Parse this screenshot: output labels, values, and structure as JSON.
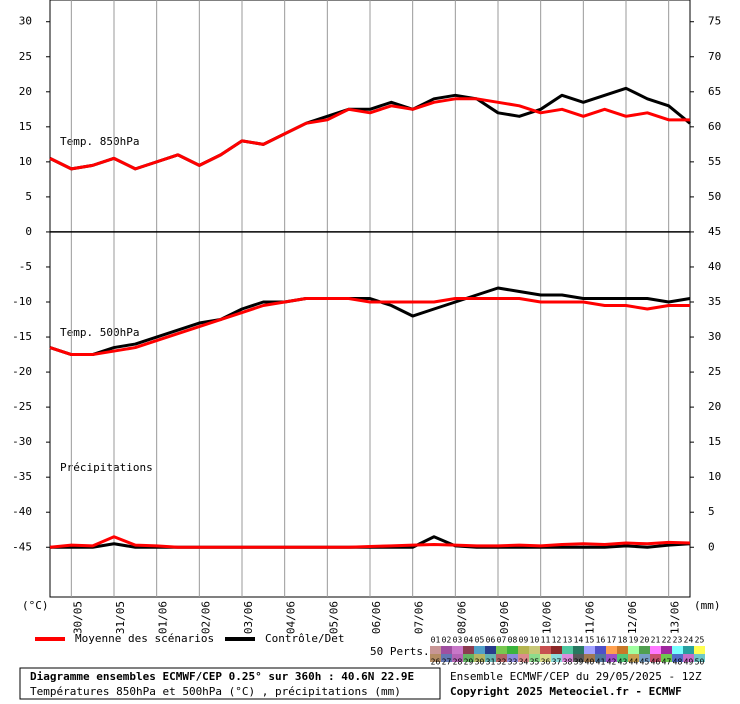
{
  "chart_data": {
    "type": "line",
    "title": "Diagramme ensembles ECMWF/CEP 0.25° sur 360h : 40.6N 22.9E",
    "subtitle": "Températures 850hPa et 500hPa (°C) , précipitations (mm)",
    "run_label": "Ensemble ECMWF/CEP du 29/05/2025 - 12Z",
    "copyright": "Copyright 2025 Meteociel.fr - ECMWF",
    "y_label": "(°C)",
    "y2_label": "(mm)",
    "t850_label": "Temp. 850hPa",
    "t500_label": "Temp. 500hPa",
    "precip_label": "Précipitations",
    "perts_label": "50 Perts.",
    "perts": [
      "01",
      "02",
      "03",
      "04",
      "05",
      "06",
      "07",
      "08",
      "09",
      "10",
      "11",
      "12",
      "13",
      "14",
      "15",
      "16",
      "17",
      "18",
      "19",
      "20",
      "21",
      "22",
      "23",
      "24",
      "25",
      "26",
      "27",
      "28",
      "29",
      "30",
      "31",
      "32",
      "33",
      "34",
      "35",
      "36",
      "37",
      "38",
      "39",
      "40",
      "41",
      "42",
      "43",
      "44",
      "45",
      "46",
      "47",
      "48",
      "49",
      "50"
    ],
    "perts_colors": [
      "#c89696",
      "#a050a0",
      "#c878c8",
      "#8c3c50",
      "#50a0c8",
      "#283c8c",
      "#78c850",
      "#3cb43c",
      "#b4b450",
      "#c8c878",
      "#c85050",
      "#8c2828",
      "#50c8a0",
      "#287860",
      "#a0a0ff",
      "#5050c8",
      "#ffa050",
      "#c87828",
      "#a0ffa0",
      "#50a050",
      "#ff78ff",
      "#a028a0",
      "#78ffff",
      "#28a0a0",
      "#ffff50",
      "#b48c64",
      "#6478b4",
      "#b464b4",
      "#64b464",
      "#b4b464",
      "#64b4b4",
      "#b46464",
      "#8c8cdc",
      "#dc8c8c",
      "#8cdc8c",
      "#dcdc8c",
      "#8cdcdc",
      "#dc8cdc",
      "#5a5a5a",
      "#a07850",
      "#5078a0",
      "#a050c8",
      "#50c878",
      "#c8a050",
      "#78a0c8",
      "#c8506e",
      "#6ec850",
      "#506ec8",
      "#c86ec8",
      "#6ec8c8"
    ],
    "x": [
      0,
      12,
      24,
      36,
      48,
      60,
      72,
      84,
      96,
      108,
      120,
      132,
      144,
      156,
      168,
      180,
      192,
      204,
      216,
      228,
      240,
      252,
      264,
      276,
      288,
      300,
      312,
      324,
      336,
      348,
      360
    ],
    "xlim": [
      0,
      360
    ],
    "xticks": [
      {
        "value": 12,
        "label": "30/05"
      },
      {
        "value": 36,
        "label": "31/05"
      },
      {
        "value": 60,
        "label": "01/06"
      },
      {
        "value": 84,
        "label": "02/06"
      },
      {
        "value": 108,
        "label": "03/06"
      },
      {
        "value": 132,
        "label": "04/06"
      },
      {
        "value": 156,
        "label": "05/06"
      },
      {
        "value": 180,
        "label": "06/06"
      },
      {
        "value": 204,
        "label": "07/06"
      },
      {
        "value": 228,
        "label": "08/06"
      },
      {
        "value": 252,
        "label": "09/06"
      },
      {
        "value": 276,
        "label": "10/06"
      },
      {
        "value": 300,
        "label": "11/06"
      },
      {
        "value": 324,
        "label": "12/06"
      },
      {
        "value": 348,
        "label": "13/06"
      }
    ],
    "ylim": [
      -52.1,
      33.1
    ],
    "yticks": [
      30,
      25,
      20,
      15,
      10,
      5,
      0,
      -5,
      -10,
      -15,
      -20,
      -25,
      -30,
      -35,
      -40,
      -45
    ],
    "y2lim": [
      -7.1,
      78.1
    ],
    "y2ticks": [
      75,
      70,
      65,
      60,
      55,
      50,
      45,
      40,
      35,
      30,
      25,
      20,
      15,
      10,
      5,
      0
    ],
    "series": [
      {
        "name": "Moyenne des scénarios",
        "color": "#ff0000",
        "t850": [
          10.5,
          9,
          9.5,
          10.5,
          9,
          10,
          11,
          9.5,
          11,
          13,
          12.5,
          14,
          15.5,
          16,
          17.5,
          17,
          18,
          17.5,
          18.5,
          19,
          19,
          18.5,
          18,
          17,
          17.5,
          16.5,
          17.5,
          16.5,
          17,
          16,
          16
        ],
        "t500": [
          -16.5,
          -17.5,
          -17.5,
          -17,
          -16.5,
          -15.5,
          -14.5,
          -13.5,
          -12.5,
          -11.5,
          -10.5,
          -10,
          -9.5,
          -9.5,
          -9.5,
          -10,
          -10,
          -10,
          -10,
          -9.5,
          -9.5,
          -9.5,
          -9.5,
          -10,
          -10,
          -10,
          -10.5,
          -10.5,
          -11,
          -10.5,
          -10.5
        ],
        "precip": [
          0,
          0.3,
          0.2,
          1.5,
          0.3,
          0.2,
          0,
          0,
          0,
          0,
          0,
          0,
          0,
          0,
          0,
          0.1,
          0.2,
          0.3,
          0.4,
          0.3,
          0.2,
          0.2,
          0.3,
          0.2,
          0.4,
          0.5,
          0.4,
          0.6,
          0.5,
          0.7,
          0.6
        ]
      },
      {
        "name": "Contrôle/Det",
        "color": "#000000",
        "t850": [
          10.5,
          9,
          9.5,
          10.5,
          9,
          10,
          11,
          9.5,
          11,
          13,
          12.5,
          14,
          15.5,
          16.5,
          17.5,
          17.5,
          18.5,
          17.5,
          19,
          19.5,
          19,
          17,
          16.5,
          17.5,
          19.5,
          18.5,
          19.5,
          20.5,
          19,
          18,
          15.5
        ],
        "t500": [
          -16.5,
          -17.5,
          -17.5,
          -16.5,
          -16,
          -15,
          -14,
          -13,
          -12.5,
          -11,
          -10,
          -10,
          -9.5,
          -9.5,
          -9.5,
          -9.5,
          -10.5,
          -12,
          -11,
          -10,
          -9,
          -8,
          -8.5,
          -9,
          -9,
          -9.5,
          -9.5,
          -9.5,
          -9.5,
          -10,
          -9.5
        ],
        "precip": [
          0,
          0,
          0,
          0.5,
          0,
          0,
          0,
          0,
          0,
          0,
          0,
          0,
          0,
          0,
          0,
          0,
          0,
          0,
          1.5,
          0.2,
          0,
          0,
          0,
          0,
          0,
          0,
          0,
          0.2,
          0,
          0.3,
          0.5
        ]
      }
    ]
  }
}
